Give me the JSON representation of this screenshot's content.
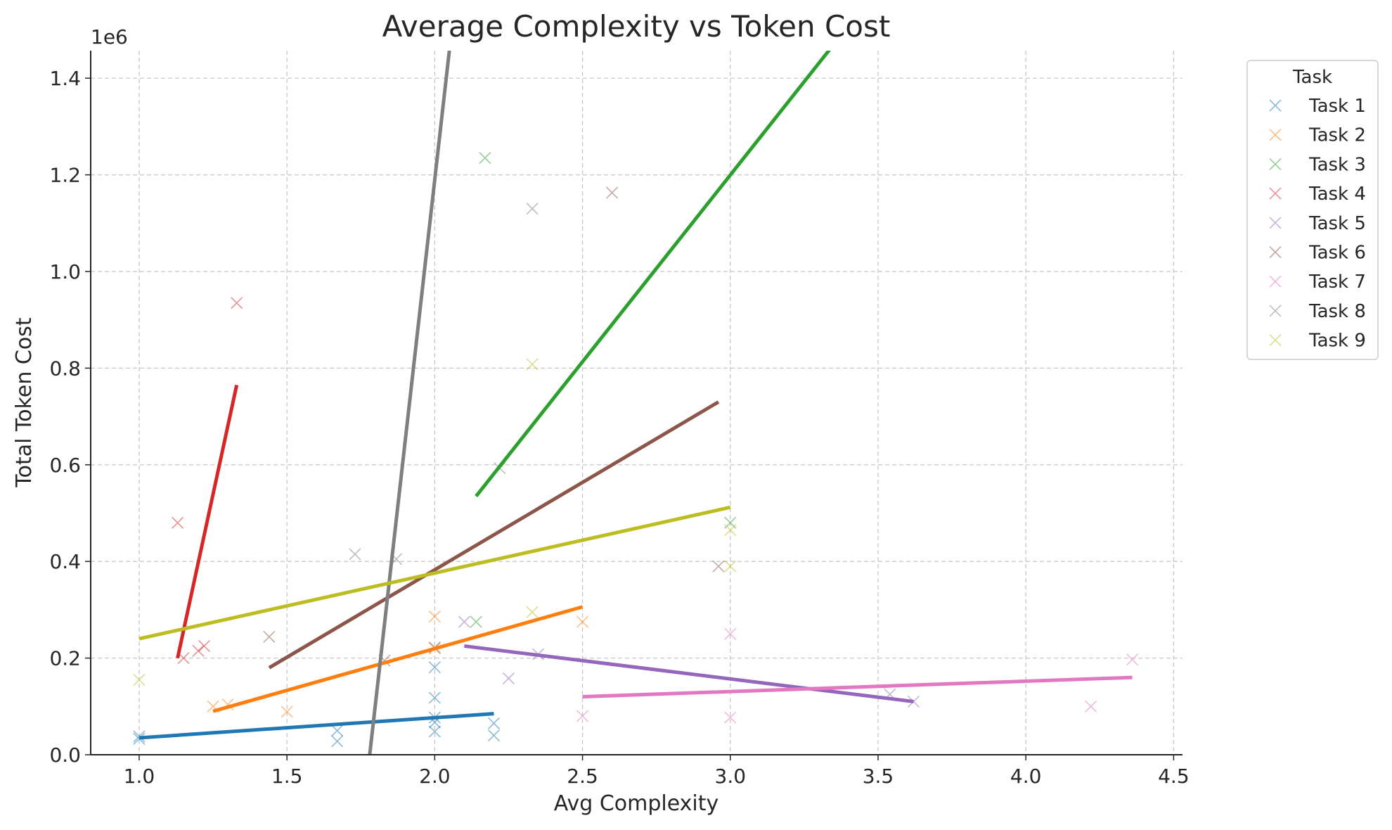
{
  "chart_data": {
    "type": "scatter",
    "title": "Average Complexity vs Token Cost",
    "xlabel": "Avg Complexity",
    "ylabel": "Total Token Cost",
    "y_offset_label": "1e6",
    "xlim": [
      0.836,
      4.53
    ],
    "ylim": [
      0,
      1.457
    ],
    "y_scale_factor": 1000000,
    "xticks": [
      "1.0",
      "1.5",
      "2.0",
      "2.5",
      "3.0",
      "3.5",
      "4.0",
      "4.5"
    ],
    "yticks": [
      "0.0",
      "0.2",
      "0.4",
      "0.6",
      "0.8",
      "1.0",
      "1.2",
      "1.4"
    ],
    "grid": true,
    "legend": {
      "title": "Task",
      "placement": "outside-right"
    },
    "marker": "x",
    "series": [
      {
        "name": "Task 1",
        "color": "#1f77b4",
        "points": [
          [
            1.0,
            0.038
          ],
          [
            1.0,
            0.033
          ],
          [
            1.67,
            0.05
          ],
          [
            1.67,
            0.028
          ],
          [
            2.0,
            0.181
          ],
          [
            2.0,
            0.118
          ],
          [
            2.0,
            0.077
          ],
          [
            2.0,
            0.067
          ],
          [
            2.0,
            0.048
          ],
          [
            2.2,
            0.065
          ],
          [
            2.2,
            0.04
          ]
        ],
        "fit": [
          [
            1.0,
            0.035
          ],
          [
            2.2,
            0.085
          ]
        ]
      },
      {
        "name": "Task 2",
        "color": "#ff7f0e",
        "points": [
          [
            1.25,
            0.1
          ],
          [
            1.3,
            0.104
          ],
          [
            1.5,
            0.089
          ],
          [
            2.0,
            0.286
          ],
          [
            2.0,
            0.22
          ],
          [
            2.5,
            0.275
          ]
        ],
        "fit": [
          [
            1.25,
            0.09
          ],
          [
            2.5,
            0.306
          ]
        ]
      },
      {
        "name": "Task 3",
        "color": "#2ca02c",
        "points": [
          [
            2.17,
            1.235
          ],
          [
            2.14,
            0.275
          ],
          [
            3.0,
            0.48
          ]
        ],
        "fit": [
          [
            2.14,
            0.535
          ],
          [
            3.35,
            1.47
          ]
        ]
      },
      {
        "name": "Task 4",
        "color": "#d62728",
        "points": [
          [
            1.33,
            0.935
          ],
          [
            1.13,
            0.48
          ],
          [
            1.15,
            0.2
          ],
          [
            1.2,
            0.215
          ],
          [
            1.22,
            0.225
          ]
        ],
        "fit": [
          [
            1.13,
            0.2
          ],
          [
            1.33,
            0.765
          ]
        ]
      },
      {
        "name": "Task 5",
        "color": "#9467bd",
        "points": [
          [
            2.1,
            0.275
          ],
          [
            2.25,
            0.158
          ],
          [
            2.35,
            0.208
          ],
          [
            3.54,
            0.125
          ],
          [
            3.62,
            0.11
          ]
        ],
        "fit": [
          [
            2.1,
            0.225
          ],
          [
            3.62,
            0.11
          ]
        ]
      },
      {
        "name": "Task 6",
        "color": "#8c564b",
        "points": [
          [
            2.6,
            1.163
          ],
          [
            1.44,
            0.244
          ],
          [
            1.83,
            0.195
          ],
          [
            2.0,
            0.222
          ],
          [
            2.96,
            0.39
          ]
        ],
        "fit": [
          [
            1.44,
            0.18
          ],
          [
            2.96,
            0.73
          ]
        ]
      },
      {
        "name": "Task 7",
        "color": "#e377c2",
        "points": [
          [
            2.5,
            0.08
          ],
          [
            3.0,
            0.25
          ],
          [
            3.0,
            0.077
          ],
          [
            4.22,
            0.1
          ],
          [
            4.36,
            0.197
          ]
        ],
        "fit": [
          [
            2.5,
            0.12
          ],
          [
            4.36,
            0.16
          ]
        ]
      },
      {
        "name": "Task 8",
        "color": "#7f7f7f",
        "points": [
          [
            2.33,
            1.13
          ],
          [
            1.73,
            0.415
          ],
          [
            1.87,
            0.405
          ],
          [
            2.22,
            0.593
          ]
        ],
        "fit": [
          [
            1.78,
            0.0
          ],
          [
            2.05,
            1.46
          ]
        ]
      },
      {
        "name": "Task 9",
        "color": "#bcbd22",
        "points": [
          [
            1.0,
            0.155
          ],
          [
            2.33,
            0.808
          ],
          [
            2.33,
            0.295
          ],
          [
            3.0,
            0.465
          ],
          [
            3.0,
            0.39
          ]
        ],
        "fit": [
          [
            1.0,
            0.24
          ],
          [
            3.0,
            0.512
          ]
        ]
      }
    ]
  }
}
